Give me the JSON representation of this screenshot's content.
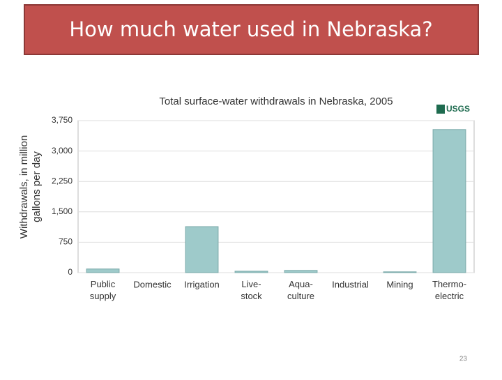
{
  "slide": {
    "title": "How much water used in Nebraska?",
    "page_number": "23"
  },
  "chart_data": {
    "type": "bar",
    "title": "Total surface-water withdrawals in Nebraska, 2005",
    "logo": "USGS",
    "ylabel": [
      "Withdrawals, in million",
      "gallons per day"
    ],
    "categories": [
      "Public\nsupply",
      "Domestic",
      "Irrigation",
      "Live-\nstock",
      "Aqua-\nculture",
      "Industrial",
      "Mining",
      "Thermo-\nelectric"
    ],
    "values": [
      90,
      0,
      1135,
      35,
      55,
      0,
      20,
      3530
    ],
    "color": "#9ecaca",
    "ylim": [
      0,
      3750
    ],
    "yticks": [
      0,
      750,
      {
        "value": 1500,
        "label": "1,500"
      },
      {
        "value": 2250,
        "label": "2,250"
      },
      {
        "value": 3000,
        "label": "3,000"
      },
      {
        "value": 3750,
        "label": "3,750"
      }
    ],
    "grid": true
  }
}
